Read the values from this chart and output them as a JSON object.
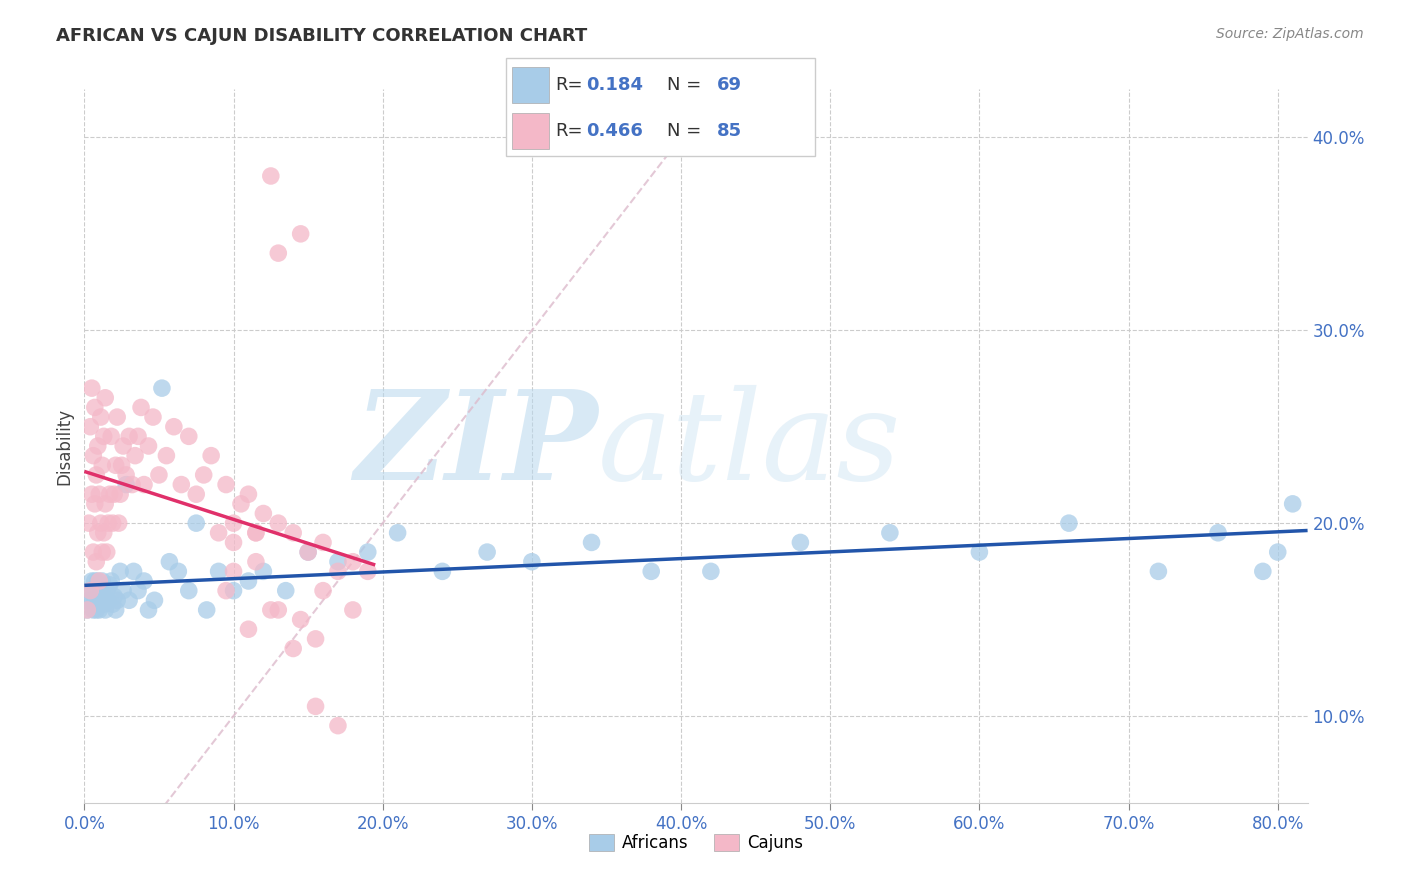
{
  "title": "AFRICAN VS CAJUN DISABILITY CORRELATION CHART",
  "source": "Source: ZipAtlas.com",
  "ylabel": "Disability",
  "xlim": [
    0.0,
    0.82
  ],
  "ylim": [
    0.055,
    0.425
  ],
  "xticks": [
    0.0,
    0.1,
    0.2,
    0.3,
    0.4,
    0.5,
    0.6,
    0.7,
    0.8
  ],
  "xticklabels": [
    "0.0%",
    "10.0%",
    "20.0%",
    "30.0%",
    "40.0%",
    "50.0%",
    "60.0%",
    "70.0%",
    "80.0%"
  ],
  "yticks": [
    0.1,
    0.2,
    0.3,
    0.4
  ],
  "yticklabels": [
    "10.0%",
    "20.0%",
    "30.0%",
    "40.0%"
  ],
  "legend_R_blue": "0.184",
  "legend_N_blue": "69",
  "legend_R_pink": "0.466",
  "legend_N_pink": "85",
  "blue_scatter_color": "#a8cce8",
  "pink_scatter_color": "#f4b8c8",
  "blue_line_color": "#2255aa",
  "pink_line_color": "#e0306a",
  "diag_line_color": "#ddbbcc",
  "watermark_color": "#cde5f5",
  "africans_x": [
    0.002,
    0.003,
    0.004,
    0.005,
    0.005,
    0.006,
    0.006,
    0.007,
    0.007,
    0.008,
    0.008,
    0.009,
    0.009,
    0.01,
    0.01,
    0.01,
    0.011,
    0.012,
    0.012,
    0.013,
    0.013,
    0.014,
    0.015,
    0.016,
    0.017,
    0.018,
    0.019,
    0.02,
    0.021,
    0.022,
    0.024,
    0.026,
    0.028,
    0.03,
    0.033,
    0.036,
    0.04,
    0.043,
    0.047,
    0.052,
    0.057,
    0.063,
    0.07,
    0.075,
    0.082,
    0.09,
    0.1,
    0.11,
    0.12,
    0.135,
    0.15,
    0.17,
    0.19,
    0.21,
    0.24,
    0.27,
    0.3,
    0.34,
    0.38,
    0.42,
    0.48,
    0.54,
    0.6,
    0.66,
    0.72,
    0.76,
    0.79,
    0.8,
    0.81
  ],
  "africans_y": [
    0.155,
    0.16,
    0.165,
    0.17,
    0.16,
    0.155,
    0.165,
    0.17,
    0.16,
    0.155,
    0.165,
    0.17,
    0.158,
    0.162,
    0.168,
    0.155,
    0.16,
    0.165,
    0.17,
    0.158,
    0.162,
    0.155,
    0.165,
    0.16,
    0.168,
    0.17,
    0.158,
    0.162,
    0.155,
    0.16,
    0.175,
    0.165,
    0.22,
    0.16,
    0.175,
    0.165,
    0.17,
    0.155,
    0.16,
    0.27,
    0.18,
    0.175,
    0.165,
    0.2,
    0.155,
    0.175,
    0.165,
    0.17,
    0.175,
    0.165,
    0.185,
    0.18,
    0.185,
    0.195,
    0.175,
    0.185,
    0.18,
    0.19,
    0.175,
    0.175,
    0.19,
    0.195,
    0.185,
    0.2,
    0.175,
    0.195,
    0.175,
    0.185,
    0.21
  ],
  "cajuns_x": [
    0.002,
    0.003,
    0.004,
    0.004,
    0.005,
    0.005,
    0.006,
    0.006,
    0.007,
    0.007,
    0.008,
    0.008,
    0.009,
    0.009,
    0.01,
    0.01,
    0.011,
    0.011,
    0.012,
    0.012,
    0.013,
    0.013,
    0.014,
    0.014,
    0.015,
    0.016,
    0.017,
    0.018,
    0.019,
    0.02,
    0.021,
    0.022,
    0.023,
    0.024,
    0.025,
    0.026,
    0.028,
    0.03,
    0.032,
    0.034,
    0.036,
    0.038,
    0.04,
    0.043,
    0.046,
    0.05,
    0.055,
    0.06,
    0.065,
    0.07,
    0.075,
    0.08,
    0.085,
    0.09,
    0.095,
    0.1,
    0.105,
    0.11,
    0.115,
    0.12,
    0.13,
    0.14,
    0.15,
    0.16,
    0.17,
    0.18,
    0.19,
    0.13,
    0.145,
    0.155,
    0.1,
    0.115,
    0.16,
    0.18,
    0.095,
    0.11,
    0.125,
    0.14,
    0.155,
    0.17,
    0.13,
    0.145,
    0.1,
    0.115,
    0.125
  ],
  "cajuns_y": [
    0.155,
    0.2,
    0.165,
    0.25,
    0.215,
    0.27,
    0.185,
    0.235,
    0.21,
    0.26,
    0.18,
    0.225,
    0.195,
    0.24,
    0.17,
    0.215,
    0.2,
    0.255,
    0.185,
    0.23,
    0.195,
    0.245,
    0.21,
    0.265,
    0.185,
    0.2,
    0.215,
    0.245,
    0.2,
    0.215,
    0.23,
    0.255,
    0.2,
    0.215,
    0.23,
    0.24,
    0.225,
    0.245,
    0.22,
    0.235,
    0.245,
    0.26,
    0.22,
    0.24,
    0.255,
    0.225,
    0.235,
    0.25,
    0.22,
    0.245,
    0.215,
    0.225,
    0.235,
    0.195,
    0.22,
    0.2,
    0.21,
    0.215,
    0.195,
    0.205,
    0.2,
    0.195,
    0.185,
    0.19,
    0.175,
    0.18,
    0.175,
    0.155,
    0.15,
    0.14,
    0.19,
    0.18,
    0.165,
    0.155,
    0.165,
    0.145,
    0.155,
    0.135,
    0.105,
    0.095,
    0.34,
    0.35,
    0.175,
    0.195,
    0.38
  ]
}
